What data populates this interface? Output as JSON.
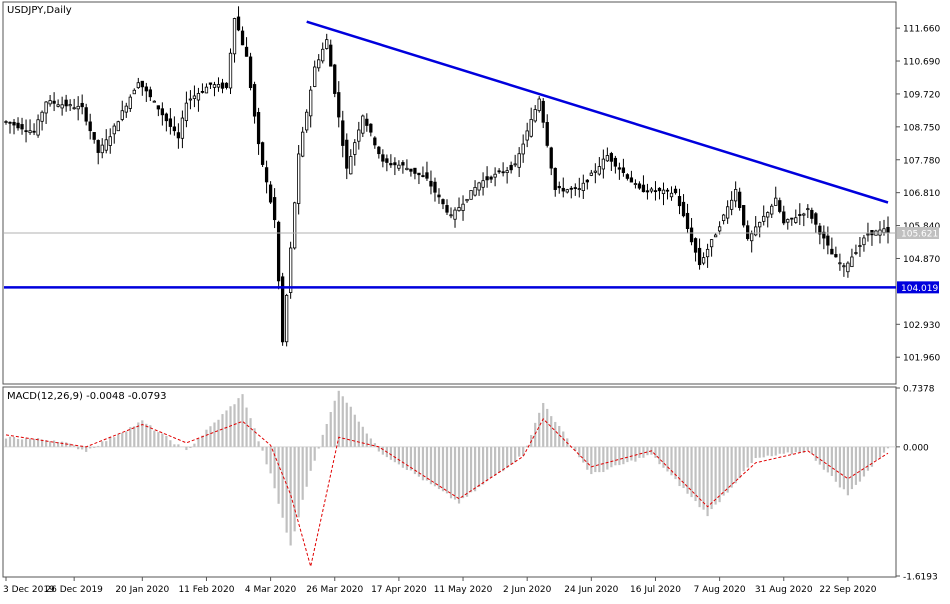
{
  "chart_data": [
    {
      "type": "candlestick",
      "title": "USDJPY,Daily",
      "ylim": [
        101.2,
        112.4
      ],
      "y_ticks": [
        "111.660",
        "110.690",
        "109.720",
        "108.750",
        "107.780",
        "106.810",
        "105.840",
        "104.870",
        "102.930",
        "101.960"
      ],
      "current_price": "105.621",
      "current_price_value": 105.621,
      "support_level_label": "104.019",
      "support_level": 104.019,
      "trendline": [
        {
          "date": "2020-03-17",
          "value": 111.85
        },
        {
          "date": "2020-10-06",
          "value": 106.52
        }
      ],
      "x_ticks": [
        {
          "label": "3 Dec 2019",
          "date": "2019-12-03"
        },
        {
          "label": "26 Dec 2019",
          "date": "2019-12-26"
        },
        {
          "label": "20 Jan 2020",
          "date": "2020-01-20"
        },
        {
          "label": "11 Feb 2020",
          "date": "2020-02-11"
        },
        {
          "label": "4 Mar 2020",
          "date": "2020-03-04"
        },
        {
          "label": "26 Mar 2020",
          "date": "2020-03-26"
        },
        {
          "label": "17 Apr 2020",
          "date": "2020-04-17"
        },
        {
          "label": "11 May 2020",
          "date": "2020-05-11"
        },
        {
          "label": "2 Jun 2020",
          "date": "2020-06-02"
        },
        {
          "label": "24 Jun 2020",
          "date": "2020-06-24"
        },
        {
          "label": "16 Jul 2020",
          "date": "2020-07-16"
        },
        {
          "label": "7 Aug 2020",
          "date": "2020-08-07"
        },
        {
          "label": "31 Aug 2020",
          "date": "2020-08-31"
        },
        {
          "label": "22 Sep 2020",
          "date": "2020-09-22"
        }
      ],
      "close_anchors": [
        {
          "date": "2019-12-03",
          "value": 108.9
        },
        {
          "date": "2019-12-12",
          "value": 108.6
        },
        {
          "date": "2019-12-17",
          "value": 109.5
        },
        {
          "date": "2019-12-30",
          "value": 109.3
        },
        {
          "date": "2020-01-03",
          "value": 108.0
        },
        {
          "date": "2020-01-08",
          "value": 108.5
        },
        {
          "date": "2020-01-17",
          "value": 110.1
        },
        {
          "date": "2020-01-24",
          "value": 109.3
        },
        {
          "date": "2020-01-31",
          "value": 108.4
        },
        {
          "date": "2020-02-04",
          "value": 109.5
        },
        {
          "date": "2020-02-12",
          "value": 110.0
        },
        {
          "date": "2020-02-18",
          "value": 109.9
        },
        {
          "date": "2020-02-20",
          "value": 112.0
        },
        {
          "date": "2020-02-25",
          "value": 110.8
        },
        {
          "date": "2020-02-28",
          "value": 108.2
        },
        {
          "date": "2020-03-05",
          "value": 106.0
        },
        {
          "date": "2020-03-09",
          "value": 102.4
        },
        {
          "date": "2020-03-13",
          "value": 107.9
        },
        {
          "date": "2020-03-19",
          "value": 110.5
        },
        {
          "date": "2020-03-24",
          "value": 111.3
        },
        {
          "date": "2020-03-31",
          "value": 107.5
        },
        {
          "date": "2020-04-06",
          "value": 109.1
        },
        {
          "date": "2020-04-13",
          "value": 107.7
        },
        {
          "date": "2020-04-20",
          "value": 107.6
        },
        {
          "date": "2020-04-28",
          "value": 107.2
        },
        {
          "date": "2020-05-06",
          "value": 106.1
        },
        {
          "date": "2020-05-15",
          "value": 107.1
        },
        {
          "date": "2020-05-28",
          "value": 107.6
        },
        {
          "date": "2020-06-05",
          "value": 109.6
        },
        {
          "date": "2020-06-11",
          "value": 106.9
        },
        {
          "date": "2020-06-19",
          "value": 106.9
        },
        {
          "date": "2020-06-30",
          "value": 107.9
        },
        {
          "date": "2020-07-10",
          "value": 106.9
        },
        {
          "date": "2020-07-23",
          "value": 106.8
        },
        {
          "date": "2020-07-31",
          "value": 104.7
        },
        {
          "date": "2020-08-06",
          "value": 105.6
        },
        {
          "date": "2020-08-13",
          "value": 106.9
        },
        {
          "date": "2020-08-18",
          "value": 105.4
        },
        {
          "date": "2020-08-27",
          "value": 106.6
        },
        {
          "date": "2020-08-31",
          "value": 105.9
        },
        {
          "date": "2020-09-08",
          "value": 106.3
        },
        {
          "date": "2020-09-16",
          "value": 105.0
        },
        {
          "date": "2020-09-21",
          "value": 104.6
        },
        {
          "date": "2020-09-29",
          "value": 105.6
        },
        {
          "date": "2020-10-05",
          "value": 105.7
        },
        {
          "date": "2020-10-06",
          "value": 105.62
        }
      ]
    },
    {
      "type": "macd",
      "title": "MACD(12,26,9) -0.0048 -0.0793",
      "ylim": [
        -1.6193,
        0.7378
      ],
      "y_ticks": [
        "0.7378",
        "0.000",
        "-1.6193"
      ],
      "signal_color": "#e00000",
      "histogram_color": "#c0c0c0",
      "anchors": [
        {
          "date": "2019-12-03",
          "macd": 0.12,
          "signal": 0.15
        },
        {
          "date": "2019-12-20",
          "macd": 0.08,
          "signal": 0.05
        },
        {
          "date": "2019-12-31",
          "macd": -0.05,
          "signal": 0.0
        },
        {
          "date": "2020-01-20",
          "macd": 0.32,
          "signal": 0.28
        },
        {
          "date": "2020-02-04",
          "macd": -0.05,
          "signal": 0.05
        },
        {
          "date": "2020-02-24",
          "macd": 0.65,
          "signal": 0.32
        },
        {
          "date": "2020-03-04",
          "macd": -0.35,
          "signal": 0.02
        },
        {
          "date": "2020-03-11",
          "macd": -1.25,
          "signal": -0.6
        },
        {
          "date": "2020-03-18",
          "macd": -0.3,
          "signal": -1.5
        },
        {
          "date": "2020-03-27",
          "macd": 0.72,
          "signal": 0.12
        },
        {
          "date": "2020-04-10",
          "macd": -0.05,
          "signal": 0.0
        },
        {
          "date": "2020-05-10",
          "macd": -0.7,
          "signal": -0.65
        },
        {
          "date": "2020-06-01",
          "macd": -0.1,
          "signal": -0.12
        },
        {
          "date": "2020-06-08",
          "macd": 0.55,
          "signal": 0.35
        },
        {
          "date": "2020-06-24",
          "macd": -0.35,
          "signal": -0.25
        },
        {
          "date": "2020-07-15",
          "macd": -0.1,
          "signal": -0.05
        },
        {
          "date": "2020-08-04",
          "macd": -0.85,
          "signal": -0.75
        },
        {
          "date": "2020-08-20",
          "macd": -0.15,
          "signal": -0.2
        },
        {
          "date": "2020-09-08",
          "macd": -0.05,
          "signal": -0.05
        },
        {
          "date": "2020-09-22",
          "macd": -0.6,
          "signal": -0.4
        },
        {
          "date": "2020-10-06",
          "macd": -0.0048,
          "signal": -0.0793
        }
      ]
    }
  ]
}
